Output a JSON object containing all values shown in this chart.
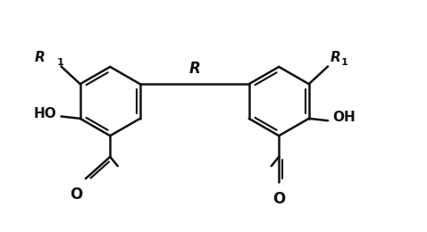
{
  "background_color": "#ffffff",
  "line_color": "#111111",
  "line_width": 1.8,
  "font_size": 11,
  "subscript_font_size": 8,
  "fig_width": 4.78,
  "fig_height": 2.6,
  "dpi": 100,
  "xlim": [
    0,
    10
  ],
  "ylim": [
    0,
    5.4
  ]
}
